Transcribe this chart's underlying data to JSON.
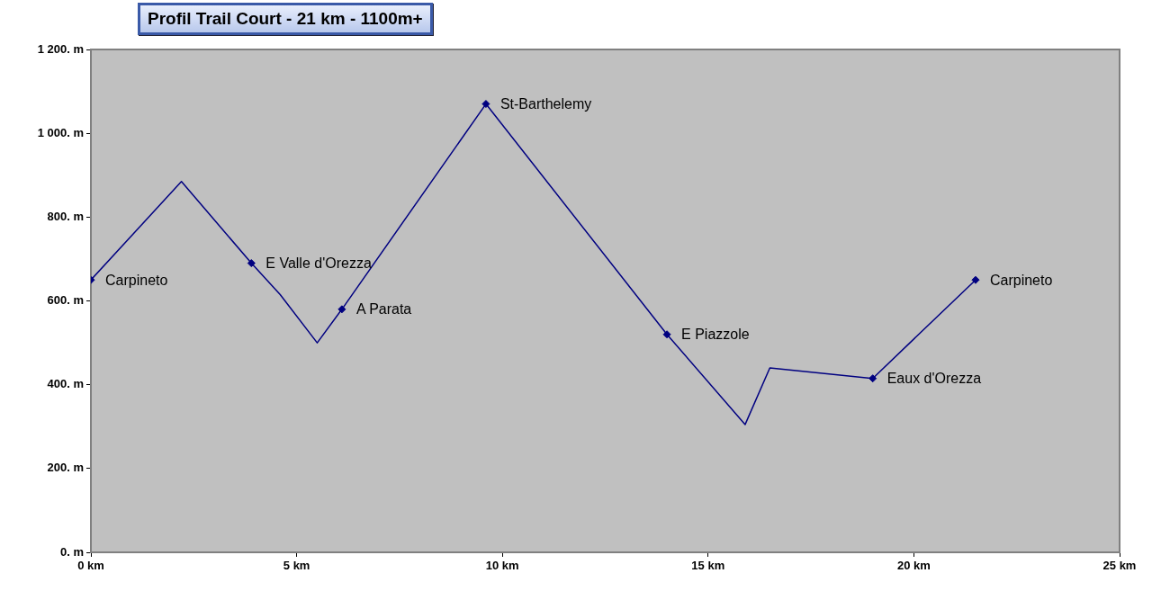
{
  "chart_data": {
    "type": "line",
    "title": "Profil Trail Court - 21 km - 1100m+",
    "series": [
      {
        "type": "line",
        "color": "#000080",
        "marker": "none",
        "x": [
          0,
          2.2,
          3.9,
          4.6,
          5.5,
          6.1,
          9.6,
          14.0,
          15.9,
          16.5,
          19.0,
          21.5
        ],
        "values": [
          650,
          885,
          690,
          615,
          500,
          580,
          1070,
          520,
          305,
          440,
          415,
          650
        ]
      },
      {
        "type": "scatter",
        "color": "#000080",
        "marker": "diamond",
        "x": [
          0,
          3.9,
          6.1,
          9.6,
          14.0,
          19.0,
          21.5
        ],
        "values": [
          650,
          690,
          580,
          1070,
          520,
          415,
          650
        ]
      }
    ],
    "annotations": [
      {
        "text": "Carpineto",
        "x": 0,
        "y": 650
      },
      {
        "text": "E Valle d'Orezza",
        "x": 3.9,
        "y": 690
      },
      {
        "text": "A Parata",
        "x": 6.1,
        "y": 580
      },
      {
        "text": "St-Barthelemy",
        "x": 9.6,
        "y": 1070
      },
      {
        "text": "E Piazzole",
        "x": 14.0,
        "y": 520
      },
      {
        "text": "Eaux d'Orezza",
        "x": 19.0,
        "y": 415
      },
      {
        "text": "Carpineto",
        "x": 21.5,
        "y": 650
      }
    ],
    "xlim": [
      0,
      25
    ],
    "xticks": [
      {
        "value": 0,
        "label": "0 km"
      },
      {
        "value": 5,
        "label": "5 km"
      },
      {
        "value": 10,
        "label": "10 km"
      },
      {
        "value": 15,
        "label": "15 km"
      },
      {
        "value": 20,
        "label": "20 km"
      },
      {
        "value": 25,
        "label": "25 km"
      }
    ],
    "ylim": [
      0,
      1200
    ],
    "yticks": [
      {
        "value": 0,
        "label": "0. m"
      },
      {
        "value": 200,
        "label": "200. m"
      },
      {
        "value": 400,
        "label": "400. m"
      },
      {
        "value": 600,
        "label": "600. m"
      },
      {
        "value": 800,
        "label": "800. m"
      },
      {
        "value": 1000,
        "label": "1 000. m"
      },
      {
        "value": 1200,
        "label": "1 200. m"
      }
    ],
    "grid": false,
    "legend": false
  }
}
